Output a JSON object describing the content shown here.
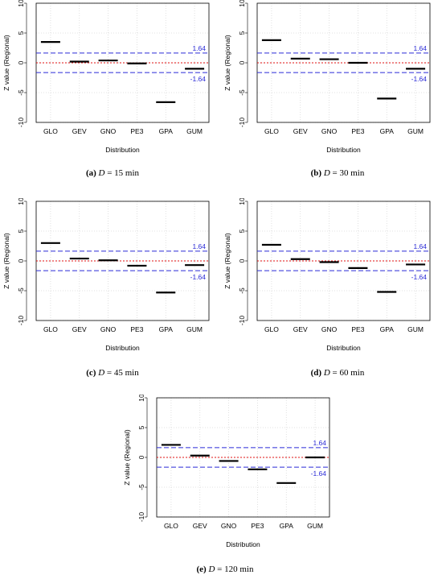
{
  "chart_data": [
    {
      "type": "bar",
      "panel": "(a)",
      "caption_var": "D",
      "caption_rest": "= 15 min",
      "ylabel": "Z value (Regional)",
      "xlabel": "Distribution",
      "categories": [
        "GLO",
        "GEV",
        "GNO",
        "PE3",
        "GPA",
        "GUM"
      ],
      "values": [
        3.5,
        0.2,
        0.4,
        -0.1,
        -6.6,
        -1.0
      ],
      "ylim": [
        -10,
        10
      ],
      "yticks": [
        -10,
        -5,
        0,
        5,
        10
      ],
      "thresholds": {
        "upper": 1.64,
        "lower": -1.64,
        "upper_label": "1.64",
        "lower_label": "-1.64",
        "color": "#2b2bd6"
      },
      "zero_line_color": "#e01010",
      "grid": true
    },
    {
      "type": "bar",
      "panel": "(b)",
      "caption_var": "D",
      "caption_rest": "= 30 min",
      "ylabel": "Z value (Regional)",
      "xlabel": "Distribution",
      "categories": [
        "GLO",
        "GEV",
        "GNO",
        "PE3",
        "GPA",
        "GUM"
      ],
      "values": [
        3.8,
        0.7,
        0.6,
        0.0,
        -6.0,
        -1.0
      ],
      "ylim": [
        -10,
        10
      ],
      "yticks": [
        -10,
        -5,
        0,
        5,
        10
      ],
      "thresholds": {
        "upper": 1.64,
        "lower": -1.64,
        "upper_label": "1.64",
        "lower_label": "-1.64",
        "color": "#2b2bd6"
      },
      "zero_line_color": "#e01010",
      "grid": true
    },
    {
      "type": "bar",
      "panel": "(c)",
      "caption_var": "D",
      "caption_rest": "= 45 min",
      "ylabel": "Z value (Regional)",
      "xlabel": "Distribution",
      "categories": [
        "GLO",
        "GEV",
        "GNO",
        "PE3",
        "GPA",
        "GUM"
      ],
      "values": [
        3.0,
        0.4,
        0.1,
        -0.8,
        -5.3,
        -0.7
      ],
      "ylim": [
        -10,
        10
      ],
      "yticks": [
        -10,
        -5,
        0,
        5,
        10
      ],
      "thresholds": {
        "upper": 1.64,
        "lower": -1.64,
        "upper_label": "1.64",
        "lower_label": "-1.64",
        "color": "#2b2bd6"
      },
      "zero_line_color": "#e01010",
      "grid": true
    },
    {
      "type": "bar",
      "panel": "(d)",
      "caption_var": "D",
      "caption_rest": "= 60 min",
      "ylabel": "Z value (Regional)",
      "xlabel": "Distribution",
      "categories": [
        "GLO",
        "GEV",
        "GNO",
        "PE3",
        "GPA",
        "GUM"
      ],
      "values": [
        2.7,
        0.3,
        -0.2,
        -1.2,
        -5.2,
        -0.6
      ],
      "ylim": [
        -10,
        10
      ],
      "yticks": [
        -10,
        -5,
        0,
        5,
        10
      ],
      "thresholds": {
        "upper": 1.64,
        "lower": -1.64,
        "upper_label": "1.64",
        "lower_label": "-1.64",
        "color": "#2b2bd6"
      },
      "zero_line_color": "#e01010",
      "grid": true
    },
    {
      "type": "bar",
      "panel": "(e)",
      "caption_var": "D",
      "caption_rest": "= 120 min",
      "ylabel": "Z value (Regional)",
      "xlabel": "Distribution",
      "categories": [
        "GLO",
        "GEV",
        "GNO",
        "PE3",
        "GPA",
        "GUM"
      ],
      "values": [
        2.1,
        0.3,
        -0.6,
        -2.0,
        -4.3,
        0.0
      ],
      "ylim": [
        -10,
        10
      ],
      "yticks": [
        -10,
        -5,
        0,
        5,
        10
      ],
      "thresholds": {
        "upper": 1.64,
        "lower": -1.64,
        "upper_label": "1.64",
        "lower_label": "-1.64",
        "color": "#2b2bd6"
      },
      "zero_line_color": "#e01010",
      "grid": true
    }
  ]
}
